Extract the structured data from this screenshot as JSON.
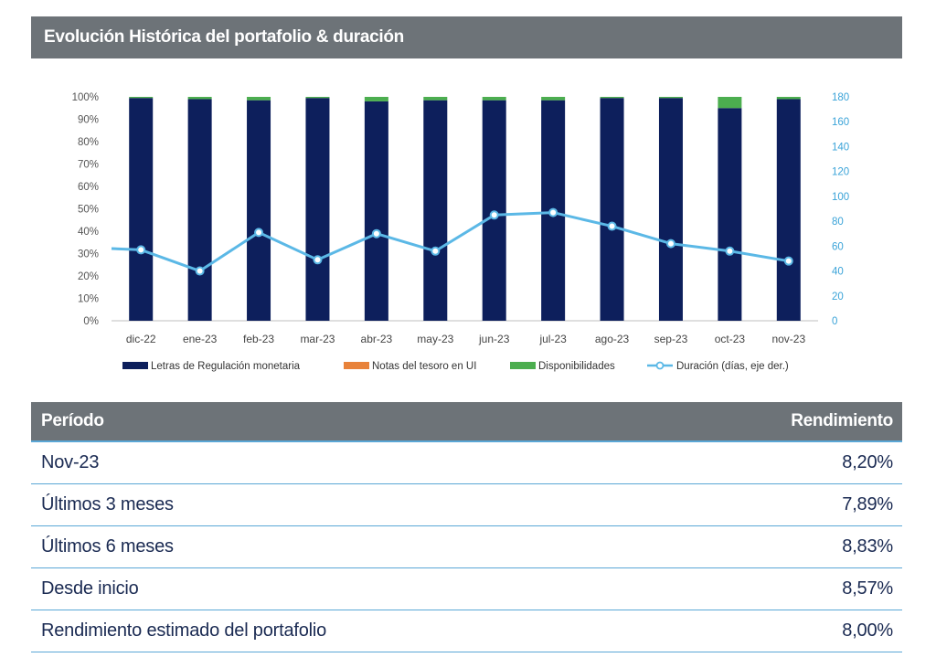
{
  "header": {
    "title": "Evolución Histórica del portafolio & duración"
  },
  "chart_data": {
    "type": "bar",
    "categories": [
      "dic-22",
      "ene-23",
      "feb-23",
      "mar-23",
      "abr-23",
      "may-23",
      "jun-23",
      "jul-23",
      "ago-23",
      "sep-23",
      "oct-23",
      "nov-23"
    ],
    "series": [
      {
        "name": "Letras de Regulación monetaria",
        "type": "stacked-bar",
        "axis": "left",
        "color": "#0d1f5c",
        "values": [
          99.5,
          99,
          98.5,
          99.5,
          98,
          98.5,
          98.5,
          98.5,
          99.5,
          99.5,
          95,
          99
        ]
      },
      {
        "name": "Notas del tesoro en UI",
        "type": "stacked-bar",
        "axis": "left",
        "color": "#e8823a",
        "values": [
          0,
          0,
          0,
          0,
          0,
          0,
          0,
          0,
          0,
          0,
          0,
          0
        ]
      },
      {
        "name": "Disponibilidades",
        "type": "stacked-bar",
        "axis": "left",
        "color": "#4cae4f",
        "values": [
          0.5,
          1,
          1.5,
          0.5,
          2,
          1.5,
          1.5,
          1.5,
          0.5,
          0.5,
          5,
          1
        ]
      },
      {
        "name": "Duración (días, eje der.)",
        "type": "line",
        "axis": "right",
        "color": "#5bb8e6",
        "values": [
          57,
          40,
          71,
          49,
          70,
          56,
          85,
          87,
          76,
          62,
          56,
          48
        ]
      }
    ],
    "y_left": {
      "ticks": [
        "0%",
        "10%",
        "20%",
        "30%",
        "40%",
        "50%",
        "60%",
        "70%",
        "80%",
        "90%",
        "100%"
      ],
      "range": [
        0,
        100
      ]
    },
    "y_right": {
      "ticks": [
        "0",
        "20",
        "40",
        "60",
        "80",
        "100",
        "120",
        "140",
        "160",
        "180"
      ],
      "range": [
        0,
        180
      ]
    },
    "line_start_value": 58,
    "legend_position": "bottom",
    "grid": false
  },
  "table": {
    "headers": {
      "period": "Período",
      "yield": "Rendimiento"
    },
    "rows": [
      {
        "period": "Nov-23",
        "yield": "8,20%"
      },
      {
        "period": "Últimos 3 meses",
        "yield": "7,89%"
      },
      {
        "period": "Últimos 6 meses",
        "yield": "8,83%"
      },
      {
        "period": "Desde inicio",
        "yield": "8,57%"
      },
      {
        "period": "Rendimiento estimado del portafolio",
        "yield": "8,00%"
      }
    ]
  }
}
